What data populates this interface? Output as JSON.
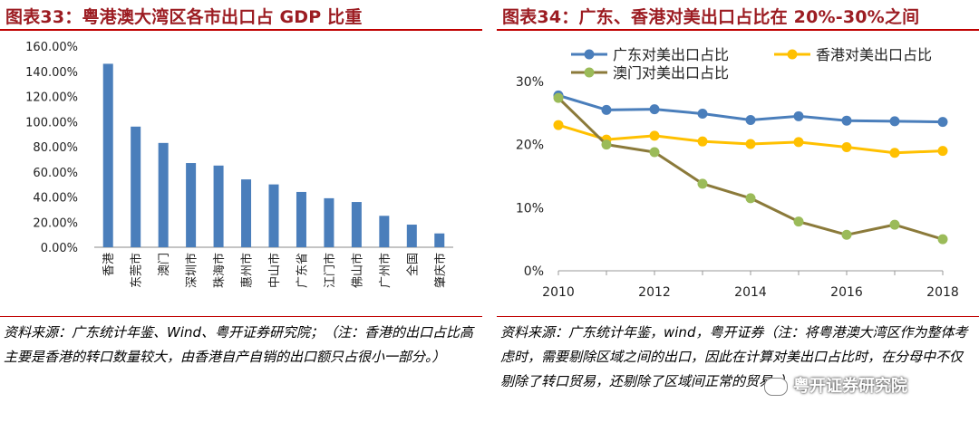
{
  "left": {
    "title": "图表33：粤港澳大湾区各市出口占 GDP 比重",
    "source": "资料来源：广东统计年鉴、Wind、粤开证券研究院；（注：香港的出口占比高主要是香港的转口数量较大，由香港自产自销的出口额只占很小一部分。）"
  },
  "right": {
    "title": "图表34：广东、香港对美出口占比在 20%-30%之间",
    "source": "资料来源：广东统计年鉴，wind，粤开证券（注：将粤港澳大湾区作为整体考虑时，需要剔除区域之间的出口，因此在计算对美出口占比时，在分母中不仅剔除了转口贸易，还剔除了区域间正常的贸易。）",
    "watermark": "粤开证券研究院"
  },
  "chart_data": [
    {
      "type": "bar",
      "title": "粤港澳大湾区各市出口占 GDP 比重",
      "categories": [
        "香港",
        "东莞市",
        "澳门",
        "深圳市",
        "珠海市",
        "惠州市",
        "中山市",
        "广东省",
        "江门市",
        "佛山市",
        "广州市",
        "全国",
        "肇庆市"
      ],
      "values": [
        146,
        96,
        83,
        67,
        65,
        54,
        50,
        44,
        39,
        36,
        25,
        18,
        11
      ],
      "ylim": [
        0,
        160
      ],
      "yticks": [
        "0.00%",
        "20.00%",
        "40.00%",
        "60.00%",
        "80.00%",
        "100.00%",
        "120.00%",
        "140.00%",
        "160.00%"
      ],
      "color": "#4a7ebb",
      "grid": false
    },
    {
      "type": "line",
      "title": "广东、香港对美出口占比在 20%-30%之间",
      "x": [
        2010,
        2011,
        2012,
        2013,
        2014,
        2015,
        2016,
        2017,
        2018
      ],
      "xticks": [
        "2010",
        "2012",
        "2014",
        "2016",
        "2018"
      ],
      "yticks": [
        "0%",
        "10%",
        "20%",
        "30%"
      ],
      "ylim": [
        0,
        30
      ],
      "legend": "top",
      "grid": false,
      "series": [
        {
          "name": "广东对美出口占比",
          "color": "#4a7ebb",
          "values": [
            27.8,
            25.5,
            25.6,
            24.9,
            23.9,
            24.5,
            23.8,
            23.7,
            23.6
          ]
        },
        {
          "name": "香港对美出口占比",
          "color": "#ffc000",
          "values": [
            23.1,
            20.8,
            21.4,
            20.5,
            20.1,
            20.4,
            19.6,
            18.7,
            19.0
          ]
        },
        {
          "name": "澳门对美出口占比",
          "color": "#9bbb59",
          "line_color": "#8b7a3a",
          "values": [
            27.4,
            20.0,
            18.8,
            13.8,
            11.5,
            7.8,
            5.7,
            7.3,
            5.0
          ]
        }
      ]
    }
  ]
}
